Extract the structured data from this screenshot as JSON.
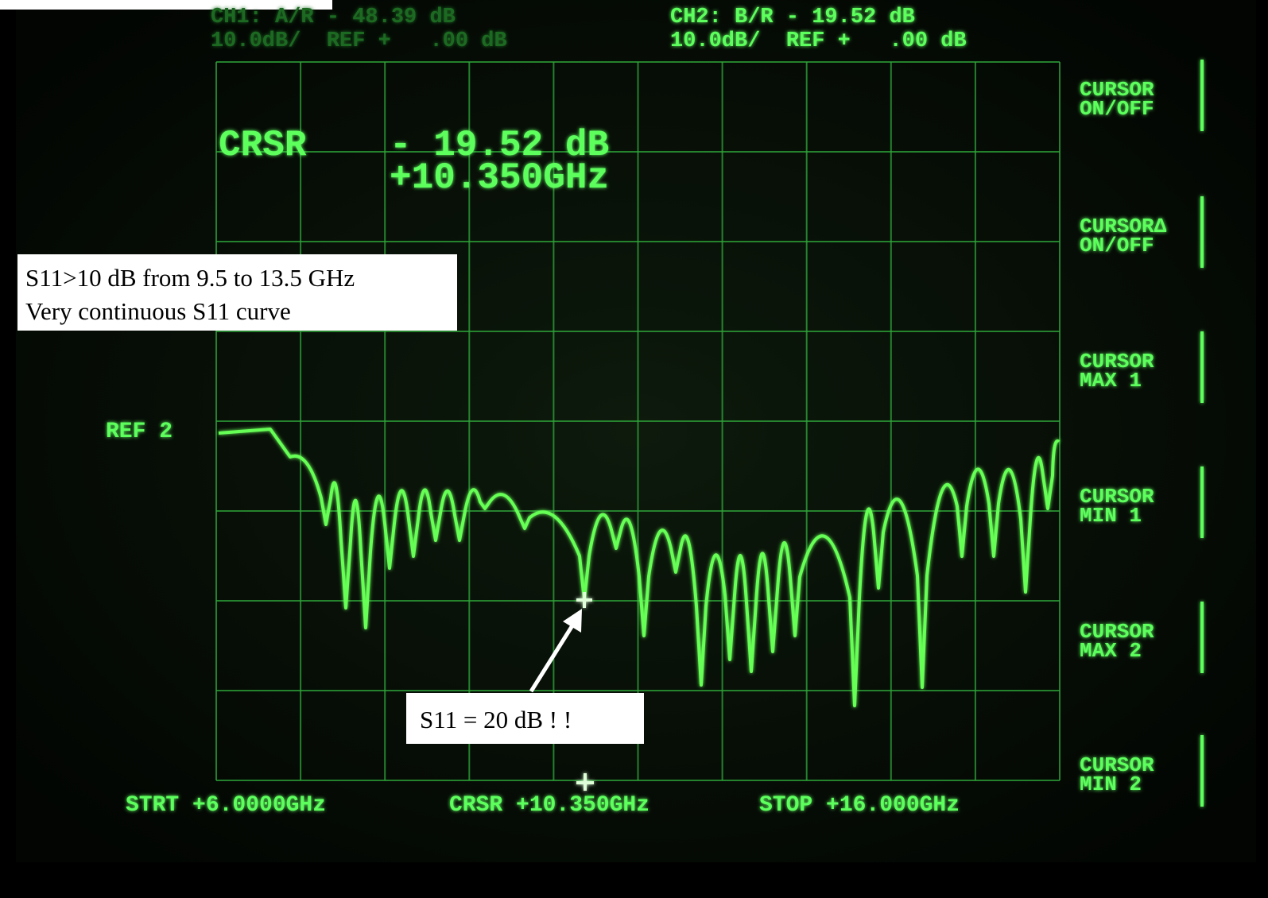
{
  "header": {
    "ch1": [
      "CH1: A/R - 48.39 dB",
      "10.0dB/  REF +   .00 dB"
    ],
    "ch2": [
      "CH2: B/R - 19.52 dB",
      "10.0dB/  REF +   .00 dB"
    ]
  },
  "cursor_readout": {
    "label": "CRSR",
    "level": "- 19.52 dB",
    "frequency": "+10.350GHz"
  },
  "reference_marker": "REF 2",
  "softkeys": [
    [
      "CURSOR",
      "ON/OFF"
    ],
    [
      "CURSOR∆",
      "ON/OFF"
    ],
    [
      "CURSOR",
      "MAX 1"
    ],
    [
      "CURSOR",
      "MIN 1"
    ],
    [
      "CURSOR",
      "MAX 2"
    ],
    [
      "CURSOR",
      "MIN 2"
    ]
  ],
  "footer": {
    "start": "STRT +6.0000GHz",
    "cursor": "CRSR +10.350GHz",
    "stop": "STOP +16.000GHz"
  },
  "annotations": {
    "bandwidth_note": [
      "S11>10 dB from 9.5 to 13.5 GHz",
      "Very continuous S11 curve"
    ],
    "dip_note": "S11 = 20 dB ! !"
  }
}
